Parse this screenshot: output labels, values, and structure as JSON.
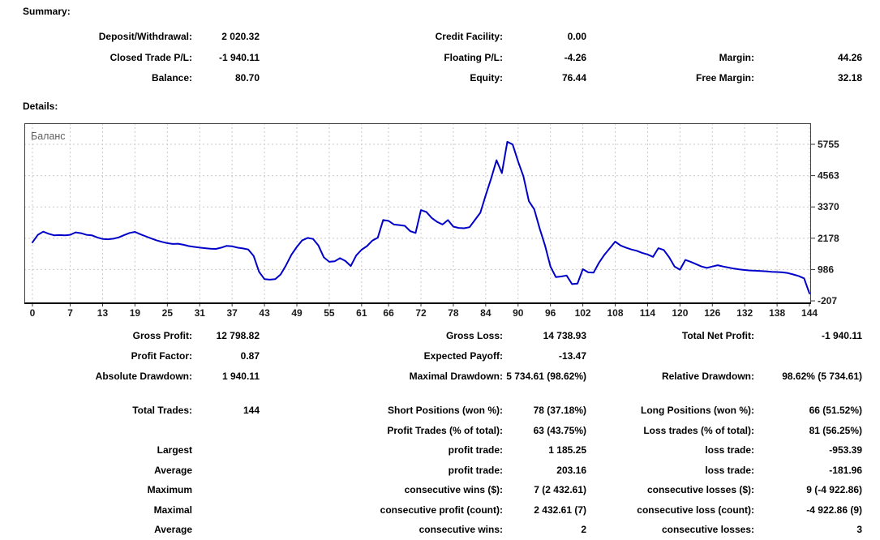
{
  "summary": {
    "heading": "Summary:",
    "rows": [
      [
        "Deposit/Withdrawal:",
        "2 020.32",
        "Credit Facility:",
        "0.00",
        "",
        ""
      ],
      [
        "Closed Trade P/L:",
        "-1 940.11",
        "Floating P/L:",
        "-4.26",
        "Margin:",
        "44.26"
      ],
      [
        "Balance:",
        "80.70",
        "Equity:",
        "76.44",
        "Free Margin:",
        "32.18"
      ]
    ]
  },
  "details": {
    "heading": "Details:",
    "groups": [
      {
        "rows": [
          [
            "Gross Profit:",
            "12 798.82",
            "Gross Loss:",
            "14 738.93",
            "Total Net Profit:",
            "-1 940.11"
          ],
          [
            "Profit Factor:",
            "0.87",
            "Expected Payoff:",
            "-13.47",
            "",
            ""
          ],
          [
            "Absolute Drawdown:",
            "1 940.11",
            "Maximal Drawdown:",
            "5 734.61 (98.62%)",
            "Relative Drawdown:",
            "98.62% (5 734.61)"
          ]
        ]
      },
      {
        "rows": [
          [
            "Total Trades:",
            "144",
            "Short Positions (won %):",
            "78 (37.18%)",
            "Long Positions (won %):",
            "66 (51.52%)"
          ],
          [
            "",
            "",
            "Profit Trades (% of total):",
            "63 (43.75%)",
            "Loss trades (% of total):",
            "81 (56.25%)"
          ],
          [
            "Largest",
            "",
            "profit trade:",
            "1 185.25",
            "loss trade:",
            "-953.39"
          ],
          [
            "Average",
            "",
            "profit trade:",
            "203.16",
            "loss trade:",
            "-181.96"
          ],
          [
            "Maximum",
            "",
            "consecutive wins ($):",
            "7 (2 432.61)",
            "consecutive losses ($):",
            "9 (-4 922.86)"
          ],
          [
            "Maximal",
            "",
            "consecutive profit (count):",
            "2 432.61 (7)",
            "consecutive loss (count):",
            "-4 922.86 (9)"
          ],
          [
            "Average",
            "",
            "consecutive wins:",
            "2",
            "consecutive losses:",
            "3"
          ]
        ]
      }
    ]
  },
  "chart_data": {
    "type": "line",
    "title": "Баланс",
    "xlabel": "",
    "ylabel": "",
    "legend_position": "none",
    "grid": true,
    "grid_color": "#c9c9c9",
    "line_color": "#0000C8",
    "title_color": "#5f5f5f",
    "axis_text_color": "#1c1c1c",
    "x_ticks": [
      0,
      7,
      13,
      19,
      25,
      31,
      37,
      43,
      49,
      55,
      61,
      66,
      72,
      78,
      84,
      90,
      96,
      102,
      108,
      114,
      120,
      126,
      132,
      138,
      144
    ],
    "y_ticks": [
      5755,
      4563,
      3370,
      2178,
      986,
      -207
    ],
    "xlim": [
      0,
      146
    ],
    "ylim": [
      -298,
      6560
    ],
    "series": [
      {
        "name": "Баланс",
        "values": [
          2020,
          2310,
          2430,
          2350,
          2290,
          2300,
          2290,
          2310,
          2400,
          2370,
          2310,
          2290,
          2210,
          2150,
          2140,
          2160,
          2210,
          2300,
          2380,
          2420,
          2330,
          2250,
          2170,
          2100,
          2040,
          1990,
          1960,
          1970,
          1930,
          1880,
          1850,
          1820,
          1800,
          1780,
          1770,
          1820,
          1890,
          1870,
          1820,
          1790,
          1750,
          1500,
          900,
          620,
          600,
          620,
          800,
          1150,
          1550,
          1850,
          2100,
          2190,
          2150,
          1900,
          1450,
          1280,
          1300,
          1420,
          1310,
          1120,
          1520,
          1740,
          1880,
          2090,
          2200,
          2870,
          2840,
          2700,
          2680,
          2650,
          2450,
          2380,
          3250,
          3180,
          2950,
          2800,
          2700,
          2870,
          2620,
          2570,
          2560,
          2600,
          2870,
          3150,
          3820,
          4450,
          5150,
          4660,
          5850,
          5750,
          5100,
          4530,
          3590,
          3280,
          2550,
          1900,
          1100,
          700,
          720,
          760,
          430,
          450,
          1000,
          880,
          870,
          1250,
          1550,
          1800,
          2050,
          1900,
          1820,
          1750,
          1700,
          1620,
          1560,
          1470,
          1800,
          1730,
          1450,
          1100,
          980,
          1350,
          1280,
          1190,
          1100,
          1050,
          1100,
          1150,
          1100,
          1060,
          1020,
          990,
          970,
          950,
          940,
          930,
          920,
          900,
          890,
          880,
          850,
          800,
          740,
          650,
          80
        ]
      }
    ]
  }
}
